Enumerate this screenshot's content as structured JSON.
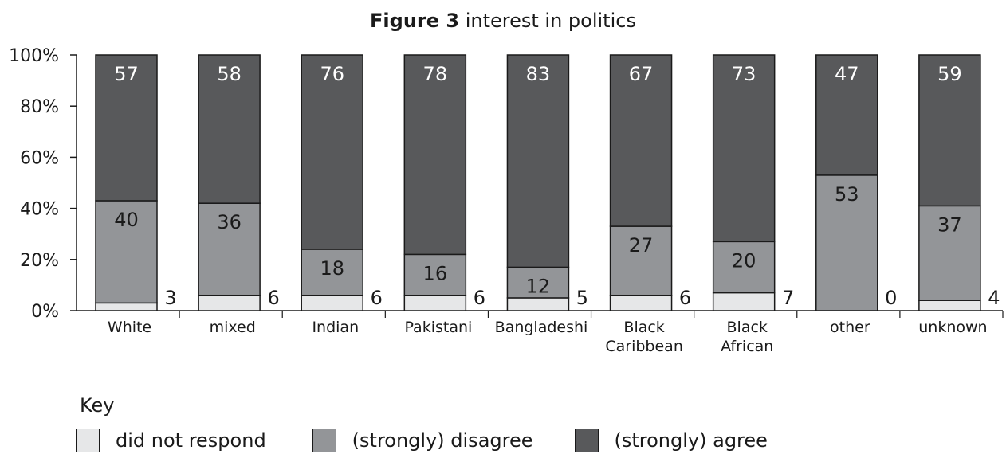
{
  "chart_data": {
    "type": "bar",
    "stacked": true,
    "title_bold": "Figure 3",
    "title_rest": "interest in politics",
    "ylim": [
      0,
      100
    ],
    "yticks": [
      "0%",
      "20%",
      "40%",
      "60%",
      "80%",
      "100%"
    ],
    "categories": [
      [
        "White"
      ],
      [
        "mixed"
      ],
      [
        "Indian"
      ],
      [
        "Pakistani"
      ],
      [
        "Bangladeshi"
      ],
      [
        "Black",
        "Caribbean"
      ],
      [
        "Black",
        "African"
      ],
      [
        "other"
      ],
      [
        "unknown"
      ]
    ],
    "series": [
      {
        "name": "did not respond",
        "color": "#e6e7e8",
        "values": [
          3,
          6,
          6,
          6,
          5,
          6,
          7,
          0,
          4
        ]
      },
      {
        "name": "(strongly) disagree",
        "color": "#939598",
        "values": [
          40,
          36,
          18,
          16,
          12,
          27,
          20,
          53,
          37
        ]
      },
      {
        "name": "(strongly) agree",
        "color": "#58595b",
        "values": [
          57,
          58,
          76,
          78,
          83,
          67,
          73,
          47,
          59
        ]
      }
    ],
    "key_title": "Key",
    "legend_position": "bottom"
  }
}
